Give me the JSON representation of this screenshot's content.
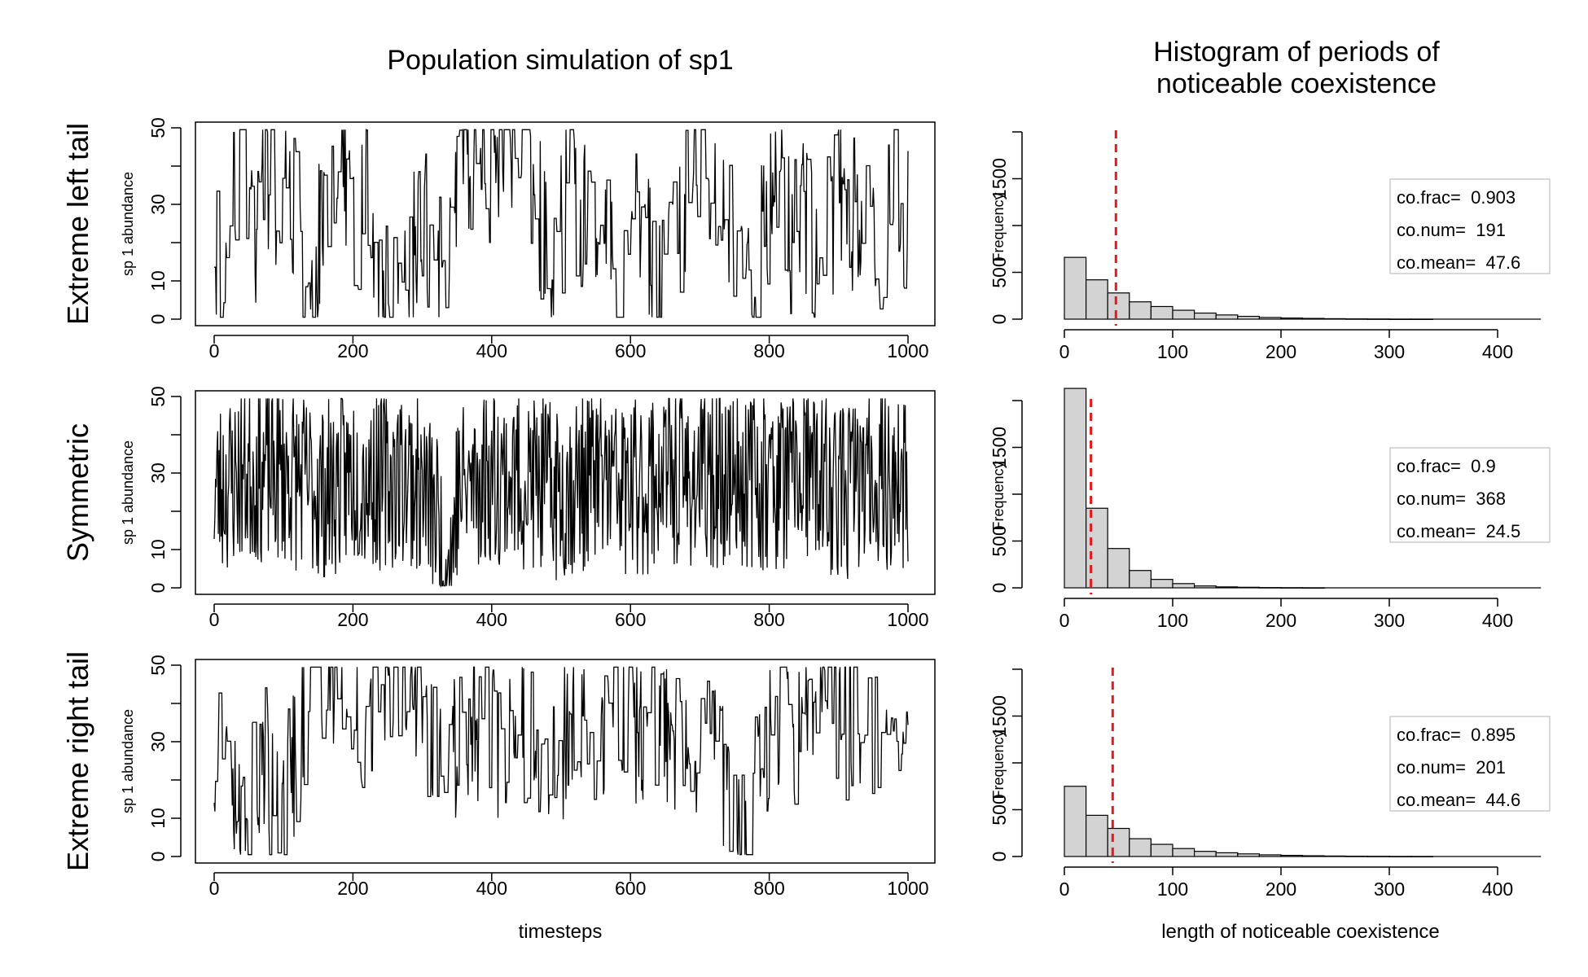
{
  "titles": {
    "left": "Population simulation of sp1",
    "right_line1": "Histogram of periods of",
    "right_line2": "noticeable coexistence"
  },
  "xlabels": {
    "left": "timesteps",
    "right": "length of noticeable coexistence"
  },
  "colors": {
    "line": "#000000",
    "bar_fill": "#d3d3d3",
    "mean_line": "#e41a1c",
    "axis": "#000000"
  },
  "chart_data": [
    {
      "type": "line",
      "row_label": "Extreme left tail",
      "ylabel": "sp 1 abundance",
      "xlim": [
        0,
        1000
      ],
      "ylim": [
        0,
        50
      ],
      "xticks": [
        0,
        200,
        400,
        600,
        800,
        1000
      ],
      "yticks": [
        0,
        10,
        30,
        50
      ],
      "x_range": [
        0,
        1000
      ],
      "style": "steppy",
      "seed": 11,
      "anchors": [
        [
          0,
          25
        ],
        [
          10,
          8
        ],
        [
          30,
          40
        ],
        [
          40,
          45
        ],
        [
          60,
          20
        ],
        [
          70,
          48
        ],
        [
          90,
          25
        ],
        [
          110,
          35
        ],
        [
          130,
          10
        ],
        [
          140,
          2
        ],
        [
          160,
          35
        ],
        [
          175,
          48
        ],
        [
          190,
          40
        ],
        [
          200,
          25
        ],
        [
          220,
          30
        ],
        [
          235,
          8
        ],
        [
          250,
          2
        ],
        [
          265,
          1
        ],
        [
          280,
          12
        ],
        [
          300,
          25
        ],
        [
          320,
          15
        ],
        [
          340,
          15
        ],
        [
          360,
          45
        ],
        [
          380,
          25
        ],
        [
          395,
          40
        ],
        [
          405,
          48
        ],
        [
          420,
          45
        ],
        [
          435,
          45
        ],
        [
          450,
          48
        ],
        [
          470,
          25
        ],
        [
          490,
          10
        ],
        [
          510,
          40
        ],
        [
          530,
          25
        ],
        [
          550,
          20
        ],
        [
          570,
          30
        ],
        [
          585,
          5
        ],
        [
          600,
          20
        ],
        [
          620,
          30
        ],
        [
          640,
          2
        ],
        [
          660,
          20
        ],
        [
          690,
          40
        ],
        [
          720,
          30
        ],
        [
          750,
          22
        ],
        [
          780,
          15
        ],
        [
          800,
          25
        ],
        [
          810,
          45
        ],
        [
          830,
          20
        ],
        [
          850,
          30
        ],
        [
          870,
          8
        ],
        [
          900,
          35
        ],
        [
          920,
          25
        ],
        [
          935,
          35
        ],
        [
          945,
          45
        ],
        [
          960,
          12
        ],
        [
          975,
          30
        ],
        [
          990,
          28
        ],
        [
          1000,
          25
        ]
      ]
    },
    {
      "type": "line",
      "row_label": "Symmetric",
      "ylabel": "sp 1 abundance",
      "xlim": [
        0,
        1000
      ],
      "ylim": [
        0,
        50
      ],
      "xticks": [
        0,
        200,
        400,
        600,
        800,
        1000
      ],
      "yticks": [
        0,
        10,
        30,
        50
      ],
      "x_range": [
        0,
        1000
      ],
      "style": "jagged",
      "seed": 23,
      "anchors": [
        [
          0,
          25
        ],
        [
          40,
          30
        ],
        [
          100,
          30
        ],
        [
          160,
          25
        ],
        [
          200,
          30
        ],
        [
          240,
          28
        ],
        [
          280,
          30
        ],
        [
          320,
          20
        ],
        [
          330,
          5
        ],
        [
          340,
          5
        ],
        [
          350,
          25
        ],
        [
          400,
          30
        ],
        [
          450,
          28
        ],
        [
          500,
          25
        ],
        [
          550,
          30
        ],
        [
          600,
          25
        ],
        [
          650,
          30
        ],
        [
          700,
          28
        ],
        [
          750,
          30
        ],
        [
          800,
          28
        ],
        [
          850,
          30
        ],
        [
          900,
          25
        ],
        [
          950,
          30
        ],
        [
          1000,
          25
        ]
      ]
    },
    {
      "type": "line",
      "row_label": "Extreme right tail",
      "ylabel": "sp 1 abundance",
      "xlim": [
        0,
        1000
      ],
      "ylim": [
        0,
        50
      ],
      "xticks": [
        0,
        200,
        400,
        600,
        800,
        1000
      ],
      "yticks": [
        0,
        10,
        30,
        50
      ],
      "x_range": [
        0,
        1000
      ],
      "style": "steppy",
      "seed": 37,
      "anchors": [
        [
          0,
          25
        ],
        [
          10,
          45
        ],
        [
          25,
          30
        ],
        [
          40,
          5
        ],
        [
          55,
          15
        ],
        [
          70,
          30
        ],
        [
          90,
          5
        ],
        [
          110,
          20
        ],
        [
          130,
          40
        ],
        [
          150,
          48
        ],
        [
          170,
          50
        ],
        [
          190,
          40
        ],
        [
          210,
          35
        ],
        [
          230,
          45
        ],
        [
          260,
          48
        ],
        [
          280,
          50
        ],
        [
          300,
          40
        ],
        [
          330,
          20
        ],
        [
          360,
          30
        ],
        [
          400,
          30
        ],
        [
          420,
          25
        ],
        [
          450,
          35
        ],
        [
          500,
          30
        ],
        [
          550,
          30
        ],
        [
          580,
          45
        ],
        [
          600,
          30
        ],
        [
          630,
          35
        ],
        [
          660,
          30
        ],
        [
          700,
          30
        ],
        [
          740,
          20
        ],
        [
          755,
          2
        ],
        [
          770,
          2
        ],
        [
          790,
          30
        ],
        [
          820,
          40
        ],
        [
          850,
          30
        ],
        [
          870,
          30
        ],
        [
          880,
          45
        ],
        [
          900,
          35
        ],
        [
          940,
          40
        ],
        [
          970,
          30
        ],
        [
          1000,
          40
        ]
      ]
    },
    {
      "type": "bar",
      "row_label": "Extreme left tail",
      "ylabel": "Frequency",
      "xlim": [
        0,
        440
      ],
      "ylim": [
        0,
        2000
      ],
      "xticks": [
        0,
        100,
        200,
        300,
        400
      ],
      "yticks": [
        0,
        500,
        1500
      ],
      "bin_width": 20,
      "values": [
        660,
        420,
        280,
        185,
        135,
        95,
        65,
        45,
        30,
        18,
        12,
        8,
        5,
        3,
        2,
        1,
        1
      ],
      "mean_line": 47.6,
      "legend": [
        "co.frac=  0.903",
        "co.num=  191",
        "co.mean=  47.6"
      ]
    },
    {
      "type": "bar",
      "row_label": "Symmetric",
      "ylabel": "Frequency",
      "xlim": [
        0,
        440
      ],
      "ylim": [
        0,
        2000
      ],
      "xticks": [
        0,
        100,
        200,
        300,
        400
      ],
      "yticks": [
        0,
        500,
        1500
      ],
      "bin_width": 20,
      "values": [
        2130,
        850,
        420,
        185,
        90,
        45,
        20,
        10,
        6,
        3,
        2,
        1
      ],
      "mean_line": 24.5,
      "legend": [
        "co.frac=  0.9",
        "co.num=  368",
        "co.mean=  24.5"
      ]
    },
    {
      "type": "bar",
      "row_label": "Extreme right tail",
      "ylabel": "Frequency",
      "xlim": [
        0,
        440
      ],
      "ylim": [
        0,
        2000
      ],
      "xticks": [
        0,
        100,
        200,
        300,
        400
      ],
      "yticks": [
        0,
        500,
        1500
      ],
      "bin_width": 20,
      "values": [
        750,
        440,
        300,
        190,
        130,
        85,
        55,
        40,
        28,
        18,
        12,
        8,
        5,
        3,
        2,
        1,
        1
      ],
      "mean_line": 44.6,
      "legend": [
        "co.frac=  0.895",
        "co.num=  201",
        "co.mean=  44.6"
      ]
    }
  ]
}
